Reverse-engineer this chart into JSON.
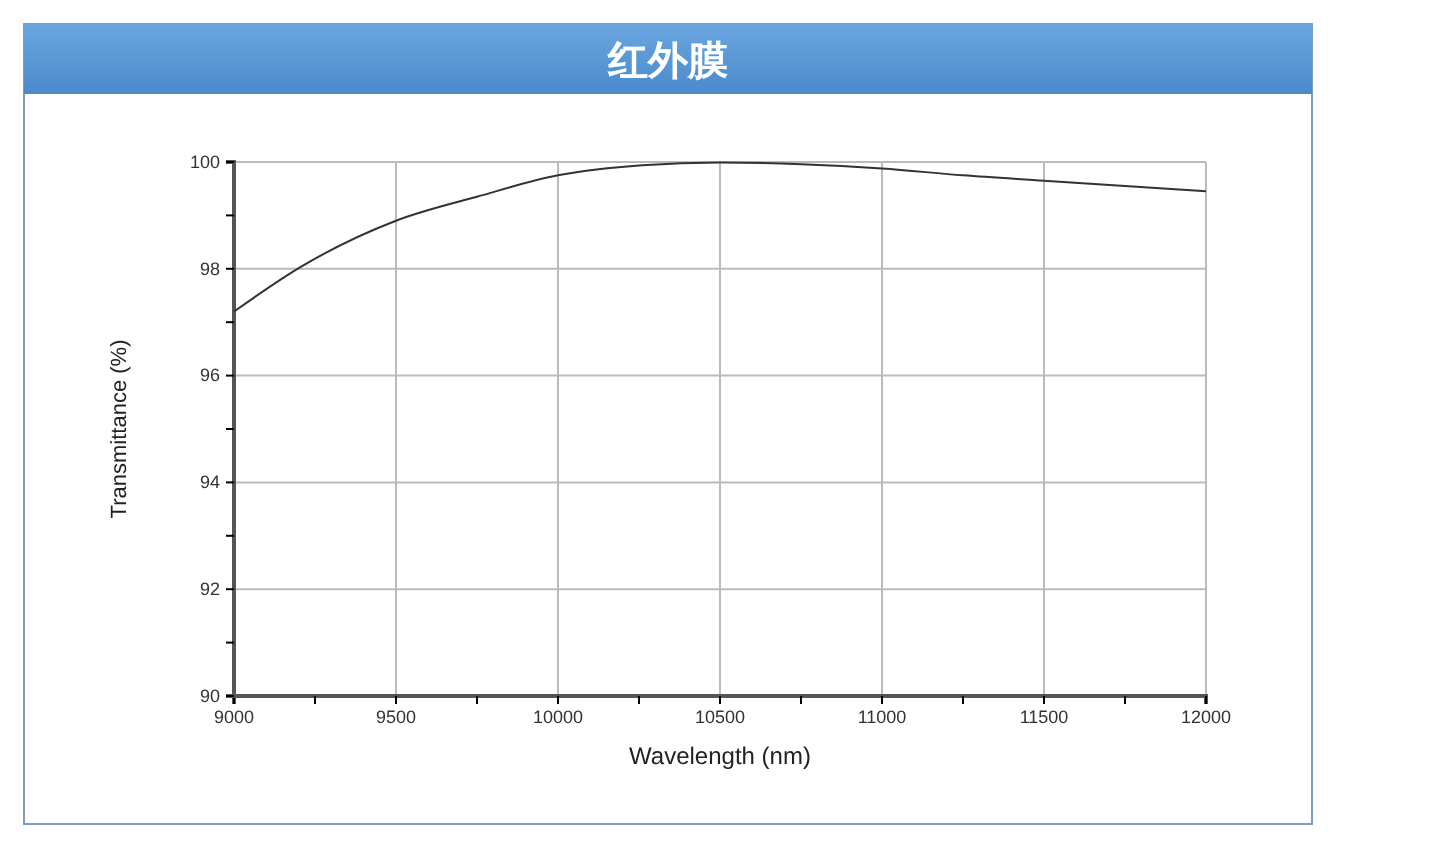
{
  "chart_data": {
    "type": "line",
    "title": "红外膜",
    "xlabel": "Wavelength (nm)",
    "ylabel": "Transmittance (%)",
    "x": [
      9000,
      9210,
      9500,
      9750,
      10000,
      10260,
      10500,
      10750,
      11000,
      11250,
      11500,
      11750,
      12000
    ],
    "series": [
      {
        "color": "#333333",
        "values": [
          97.2,
          98.05,
          98.9,
          99.35,
          99.75,
          99.94,
          99.99,
          99.96,
          99.88,
          99.75,
          99.65,
          99.55,
          99.45
        ]
      }
    ],
    "xlim": [
      9000,
      12000
    ],
    "ylim": [
      90,
      100
    ],
    "xticks": [
      9000,
      {
        "value": 9250,
        "label": null
      },
      9500,
      {
        "value": 9750,
        "label": null
      },
      10000,
      {
        "value": 10250,
        "label": null
      },
      10500,
      {
        "value": 10750,
        "label": null
      },
      11000,
      {
        "value": 11250,
        "label": null
      },
      11500,
      {
        "value": 11750,
        "label": null
      },
      12000
    ],
    "yticks": [
      90,
      {
        "value": 91,
        "label": null
      },
      92,
      {
        "value": 93,
        "label": null
      },
      94,
      {
        "value": 95,
        "label": null
      },
      96,
      {
        "value": 97,
        "label": null
      },
      98,
      {
        "value": 99,
        "label": null
      },
      100
    ],
    "grid": true,
    "marker": "none",
    "line_style": "solid"
  }
}
